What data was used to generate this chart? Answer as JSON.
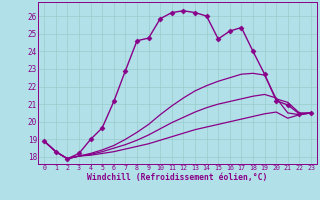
{
  "xlabel": "Windchill (Refroidissement éolien,°C)",
  "background_color": "#b2e0e8",
  "line_color": "#880088",
  "grid_color": "#99cccc",
  "xticks": [
    0,
    1,
    2,
    3,
    4,
    5,
    6,
    7,
    8,
    9,
    10,
    11,
    12,
    13,
    14,
    15,
    16,
    17,
    18,
    19,
    20,
    21,
    22,
    23
  ],
  "yticks": [
    18,
    19,
    20,
    21,
    22,
    23,
    24,
    25,
    26
  ],
  "ylim": [
    17.6,
    26.8
  ],
  "xlim": [
    -0.5,
    23.5
  ],
  "series": [
    {
      "x": [
        0,
        1,
        2,
        3,
        4,
        5,
        6,
        7,
        8,
        9,
        10,
        11,
        12,
        13,
        14,
        15,
        16,
        17,
        18,
        19,
        20,
        21,
        22,
        23
      ],
      "y": [
        18.9,
        18.3,
        17.9,
        18.05,
        18.1,
        18.2,
        18.3,
        18.45,
        18.6,
        18.75,
        18.95,
        19.15,
        19.35,
        19.55,
        19.7,
        19.85,
        20.0,
        20.15,
        20.3,
        20.45,
        20.55,
        20.2,
        20.4,
        20.5
      ],
      "marker": null,
      "linewidth": 0.9
    },
    {
      "x": [
        0,
        1,
        2,
        3,
        4,
        5,
        6,
        7,
        8,
        9,
        10,
        11,
        12,
        13,
        14,
        15,
        16,
        17,
        18,
        19,
        20,
        21,
        22,
        23
      ],
      "y": [
        18.9,
        18.3,
        17.9,
        18.05,
        18.15,
        18.3,
        18.5,
        18.7,
        18.95,
        19.25,
        19.6,
        19.95,
        20.25,
        20.55,
        20.8,
        21.0,
        21.15,
        21.3,
        21.45,
        21.55,
        21.35,
        20.5,
        20.4,
        20.5
      ],
      "marker": null,
      "linewidth": 0.9
    },
    {
      "x": [
        0,
        1,
        2,
        3,
        4,
        5,
        6,
        7,
        8,
        9,
        10,
        11,
        12,
        13,
        14,
        15,
        16,
        17,
        18,
        19,
        20,
        21,
        22,
        23
      ],
      "y": [
        18.9,
        18.3,
        17.9,
        18.05,
        18.2,
        18.4,
        18.65,
        19.0,
        19.4,
        19.85,
        20.4,
        20.9,
        21.35,
        21.75,
        22.05,
        22.3,
        22.5,
        22.7,
        22.75,
        22.65,
        21.3,
        21.1,
        20.5,
        20.5
      ],
      "marker": null,
      "linewidth": 0.9
    },
    {
      "x": [
        0,
        1,
        2,
        3,
        4,
        5,
        6,
        7,
        8,
        9,
        10,
        11,
        12,
        13,
        14,
        15,
        16,
        17,
        18,
        19,
        20,
        21,
        22,
        23
      ],
      "y": [
        18.9,
        18.3,
        17.9,
        18.2,
        19.0,
        19.65,
        21.15,
        22.9,
        24.6,
        24.75,
        25.85,
        26.2,
        26.3,
        26.2,
        26.0,
        24.7,
        25.15,
        25.35,
        24.0,
        22.7,
        21.2,
        20.95,
        20.45,
        20.5
      ],
      "marker": "D",
      "linewidth": 1.0
    }
  ]
}
